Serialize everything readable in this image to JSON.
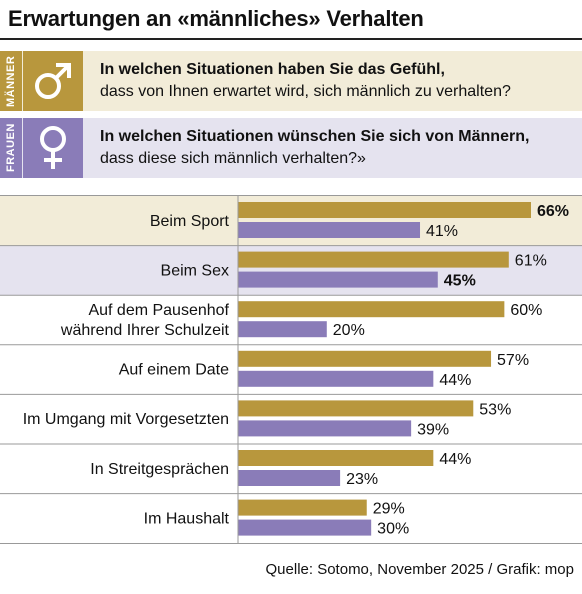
{
  "title": "Erwartungen an «männliches» Verhalten",
  "groups": {
    "men": {
      "label": "MÄNNER",
      "question_bold": "In welchen Situationen haben Sie das Gefühl,",
      "question_regular": "dass von Ihnen erwartet wird, sich männlich zu verhalten?",
      "color": "#b8973d",
      "icon": "male-symbol-icon"
    },
    "women": {
      "label": "FRAUEN",
      "question_bold": "In welchen Situationen wünschen Sie sich von Männern,",
      "question_regular": "dass diese sich männlich verhalten?»",
      "color": "#8a7cb8",
      "icon": "female-symbol-icon"
    }
  },
  "chart_data": {
    "type": "bar",
    "orientation": "horizontal",
    "categories": [
      [
        "Beim Sport"
      ],
      [
        "Beim Sex"
      ],
      [
        "Auf dem Pausenhof",
        "während Ihrer Schulzeit"
      ],
      [
        "Auf einem Date"
      ],
      [
        "Im Umgang mit Vorgesetzten"
      ],
      [
        "In Streitgesprächen"
      ],
      [
        "Im Haushalt"
      ]
    ],
    "series": [
      {
        "values": [
          66,
          61,
          60,
          57,
          53,
          44,
          29
        ],
        "labels": [
          "66%",
          "61%",
          "60%",
          "57%",
          "53%",
          "44%",
          "29%"
        ],
        "color": "#b8973d"
      },
      {
        "values": [
          41,
          45,
          20,
          44,
          39,
          23,
          30
        ],
        "labels": [
          "41%",
          "45%",
          "20%",
          "44%",
          "39%",
          "23%",
          "30%"
        ],
        "color": "#8a7cb8"
      }
    ],
    "bold_labels": [
      [
        0,
        0
      ],
      [
        1,
        1
      ]
    ],
    "row_shading": [
      "#f2ecd8",
      "#e5e3ef",
      null,
      null,
      null,
      null,
      null
    ],
    "xlim": [
      0,
      66
    ]
  },
  "source": "Quelle: Sotomo, November 2025 / Grafik: mop"
}
